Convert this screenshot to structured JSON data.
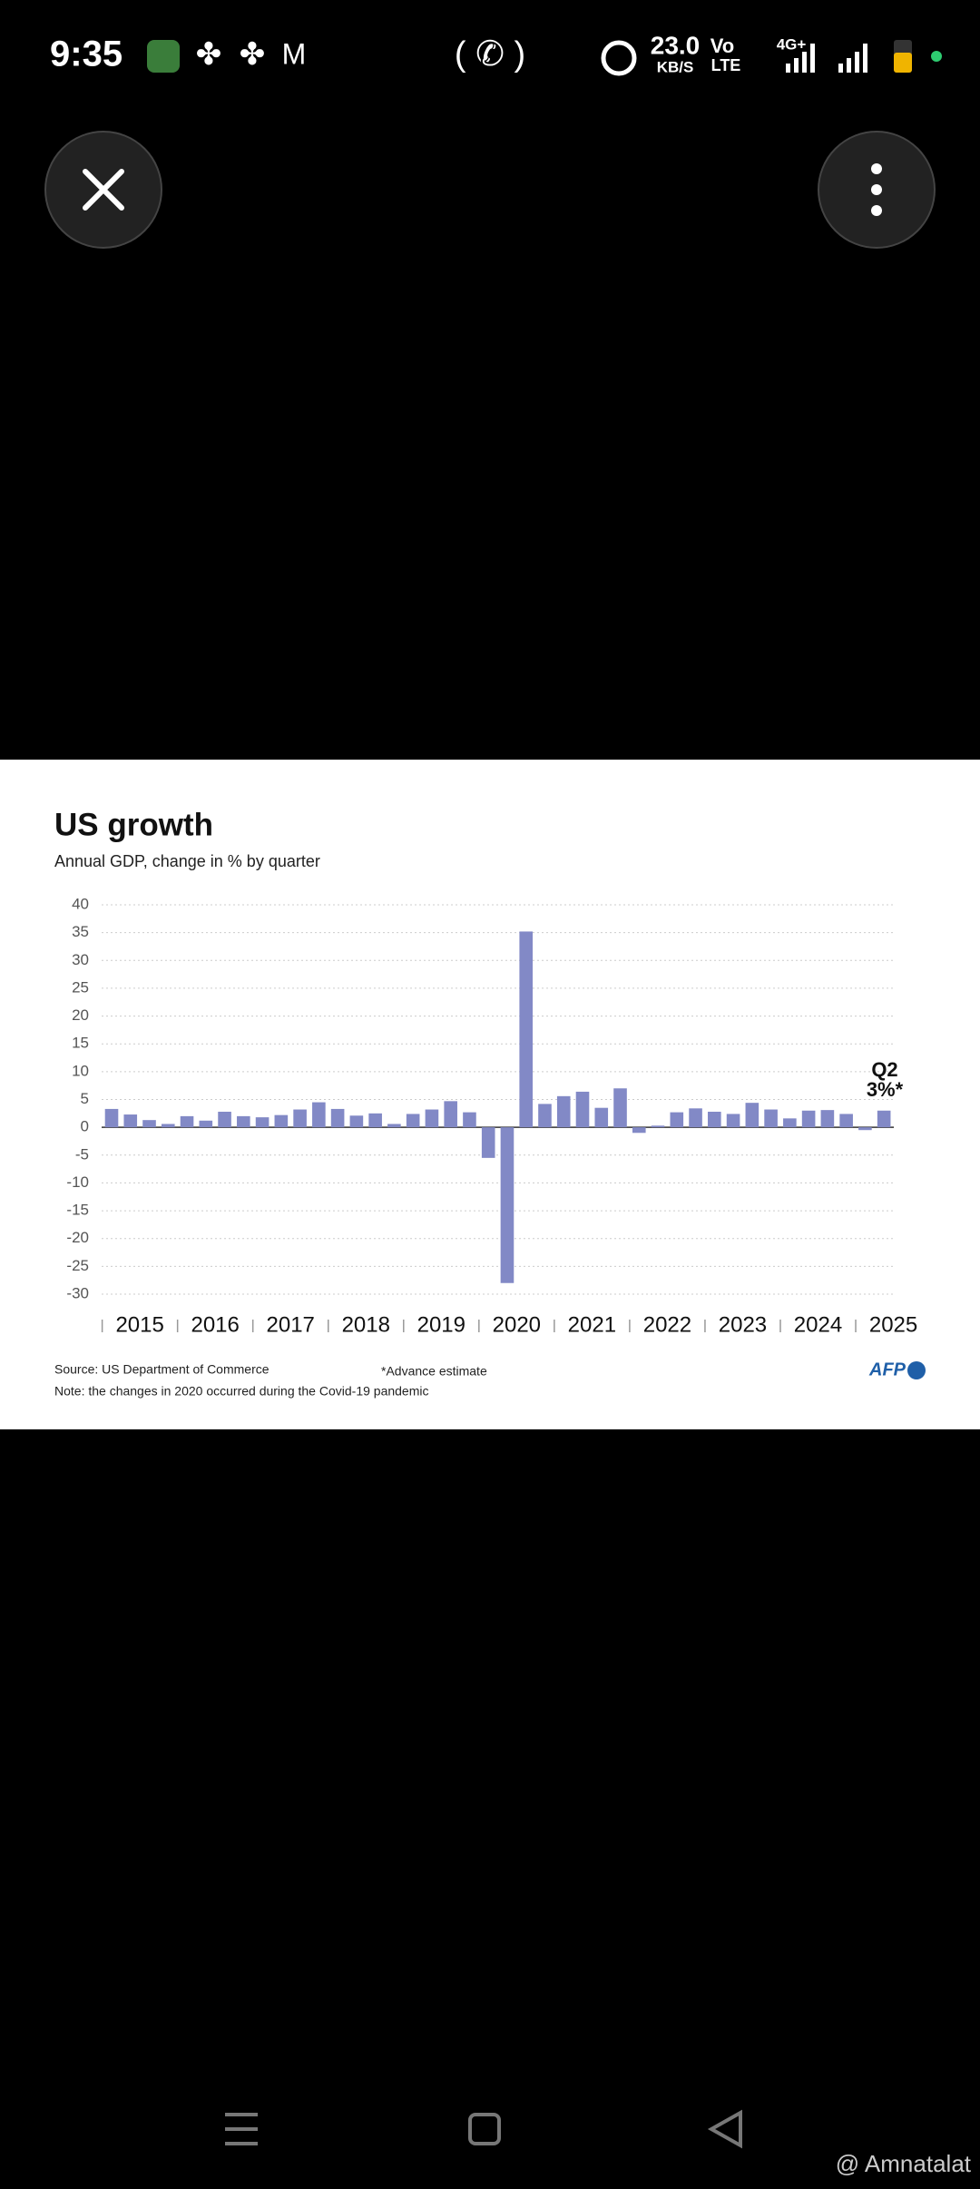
{
  "status_bar": {
    "time": "9:35",
    "speed": "23.0",
    "speed_unit": "KB/S",
    "volte": "Vo",
    "lte": "LTE",
    "network": "4G+"
  },
  "chart_data": {
    "type": "bar",
    "title": "US growth",
    "subtitle": "Annual GDP, change in % by quarter",
    "values": [
      3.3,
      2.3,
      1.3,
      0.6,
      2.0,
      1.2,
      2.8,
      2.0,
      1.8,
      2.2,
      3.2,
      4.5,
      3.3,
      2.1,
      2.5,
      0.6,
      2.4,
      3.2,
      4.7,
      2.7,
      -5.5,
      -28.0,
      35.2,
      4.2,
      5.6,
      6.4,
      3.5,
      7.0,
      -1.0,
      0.3,
      2.7,
      3.4,
      2.8,
      2.4,
      4.4,
      3.2,
      1.6,
      3.0,
      3.1,
      2.4,
      -0.5,
      3.0
    ],
    "color": "#8289c6",
    "year_labels": [
      "2015",
      "2016",
      "2017",
      "2018",
      "2019",
      "2020",
      "2021",
      "2022",
      "2023",
      "2024",
      "2025"
    ],
    "ylim": [
      -30,
      40
    ],
    "yticks": [
      -30,
      -25,
      -20,
      -15,
      -10,
      -5,
      0,
      5,
      10,
      15,
      20,
      25,
      30,
      35,
      40
    ],
    "grid": true,
    "annotation": {
      "label": "Q2",
      "text": "3%*"
    },
    "source": "Source: US Department of Commerce",
    "footnote": "*Advance estimate",
    "note": "Note: the changes in 2020 occurred during the Covid-19 pandemic",
    "logo": "AFP"
  },
  "watermark": "@ Amnatalat"
}
